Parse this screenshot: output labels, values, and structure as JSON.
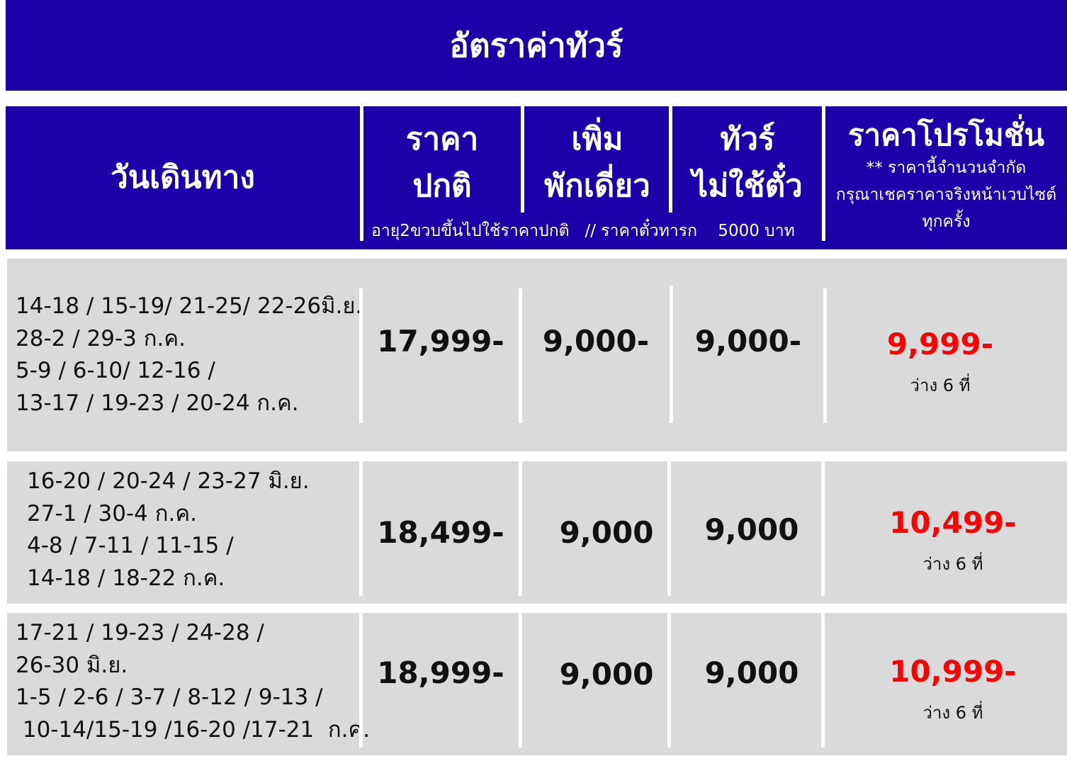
{
  "title": "อัตราค่าทัวร์",
  "header": {
    "date": "วันเดินทาง",
    "normal": [
      "ราคา",
      "ปกติ"
    ],
    "single": [
      "เพิ่ม",
      "พักเดี่ยว"
    ],
    "noticket": [
      "ทัวร์",
      "ไม่ใช้ตั๋ว"
    ],
    "promo": "ราคาโปรโมชั่น",
    "promo_note": [
      "** ราคานี้จำนวนจำกัด",
      "กรุณาเชคราคาจริงหน้าเวบไซต์",
      "ทุกครั้ง"
    ],
    "note": "อายุ2ขวบขึ้นไปใช้ราคาปกติ   // ราคาตั๋วทารก    5000 บาท"
  },
  "rows": [
    {
      "dates": [
        "14-18 / 15-19/ 21-25/ 22-26มิ.ย.",
        "28-2 / 29-3 ก.ค.",
        "5-9 / 6-10/ 12-16 /",
        "13-17 / 19-23 / 20-24 ก.ค."
      ],
      "normal": "17,999-",
      "single": "9,000-",
      "noticket": "9,000-",
      "promo": "9,999-",
      "seats": "ว่าง 6 ที่"
    },
    {
      "dates": [
        "16-20 / 20-24 / 23-27 มิ.ย.",
        "27-1 / 30-4  ก.ค.",
        "4-8 / 7-11 / 11-15 /",
        "14-18 / 18-22 ก.ค."
      ],
      "normal": "18,499-",
      "single": "9,000",
      "noticket": "9,000",
      "promo": "10,499-",
      "seats": "ว่าง 6 ที่"
    },
    {
      "dates": [
        "17-21 / 19-23 / 24-28 /",
        "26-30  มิ.ย.",
        "1-5 / 2-6 / 3-7 / 8-12 / 9-13 /",
        " 10-14/15-19 /16-20 /17-21  ก.ค."
      ],
      "normal": "18,999-",
      "single": "9,000",
      "noticket": "9,000",
      "promo": "10,999-",
      "seats": "ว่าง 6 ที่"
    }
  ],
  "colors": {
    "header_bg": "#1c00a8",
    "row_bg": "#dadada",
    "promo": "#ff0000"
  }
}
